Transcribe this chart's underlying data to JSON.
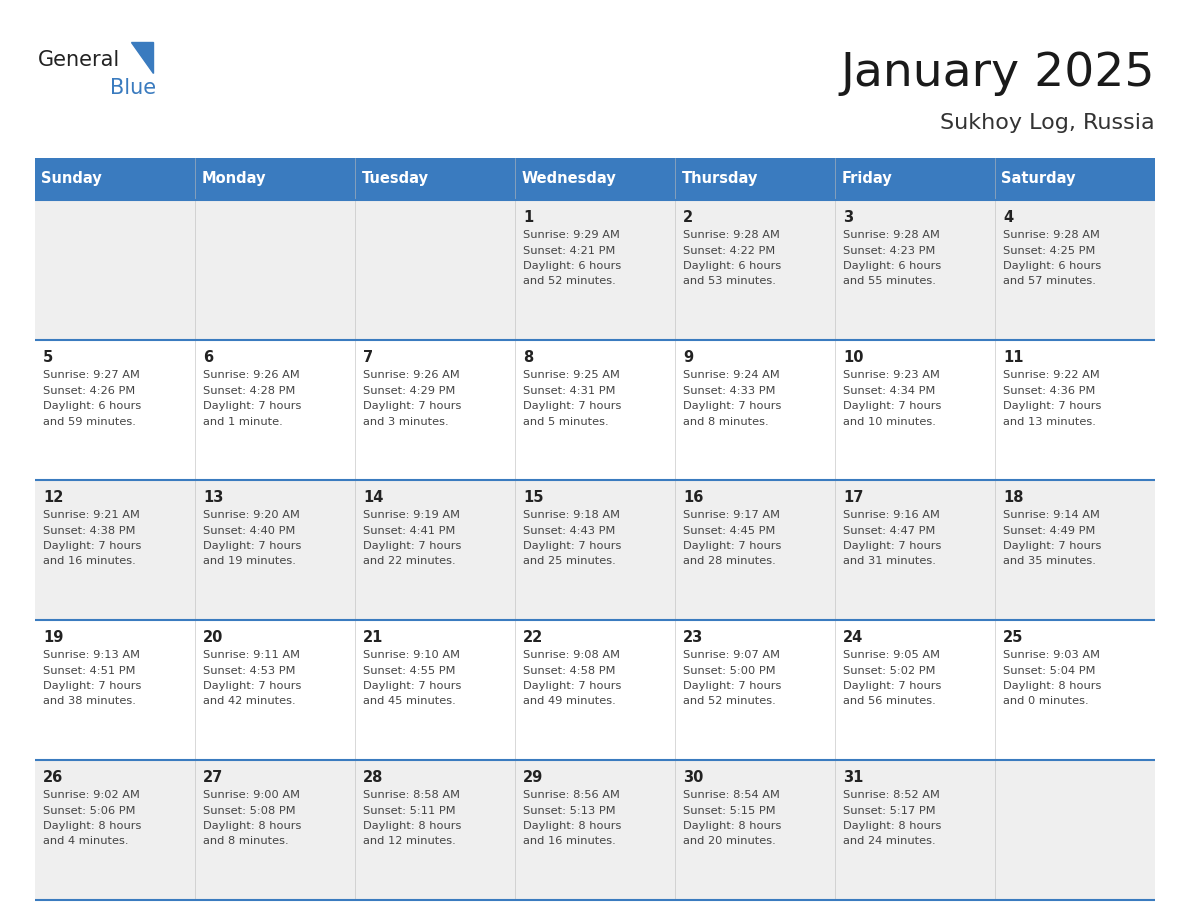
{
  "title": "January 2025",
  "subtitle": "Sukhoy Log, Russia",
  "header_color": "#3A7BBF",
  "header_text_color": "#FFFFFF",
  "day_names": [
    "Sunday",
    "Monday",
    "Tuesday",
    "Wednesday",
    "Thursday",
    "Friday",
    "Saturday"
  ],
  "background_color": "#FFFFFF",
  "cell_bg_odd": "#EFEFEF",
  "cell_bg_even": "#FFFFFF",
  "border_color": "#3A7BBF",
  "sep_color": "#3A7BBF",
  "date_color": "#222222",
  "text_color": "#444444",
  "logo_general_color": "#222222",
  "logo_blue_color": "#3A7BBF",
  "logo_triangle_color": "#3A7BBF",
  "weeks": [
    [
      {
        "date": "",
        "sunrise": "",
        "sunset": "",
        "daylight_line1": "",
        "daylight_line2": ""
      },
      {
        "date": "",
        "sunrise": "",
        "sunset": "",
        "daylight_line1": "",
        "daylight_line2": ""
      },
      {
        "date": "",
        "sunrise": "",
        "sunset": "",
        "daylight_line1": "",
        "daylight_line2": ""
      },
      {
        "date": "1",
        "sunrise": "Sunrise: 9:29 AM",
        "sunset": "Sunset: 4:21 PM",
        "daylight_line1": "Daylight: 6 hours",
        "daylight_line2": "and 52 minutes."
      },
      {
        "date": "2",
        "sunrise": "Sunrise: 9:28 AM",
        "sunset": "Sunset: 4:22 PM",
        "daylight_line1": "Daylight: 6 hours",
        "daylight_line2": "and 53 minutes."
      },
      {
        "date": "3",
        "sunrise": "Sunrise: 9:28 AM",
        "sunset": "Sunset: 4:23 PM",
        "daylight_line1": "Daylight: 6 hours",
        "daylight_line2": "and 55 minutes."
      },
      {
        "date": "4",
        "sunrise": "Sunrise: 9:28 AM",
        "sunset": "Sunset: 4:25 PM",
        "daylight_line1": "Daylight: 6 hours",
        "daylight_line2": "and 57 minutes."
      }
    ],
    [
      {
        "date": "5",
        "sunrise": "Sunrise: 9:27 AM",
        "sunset": "Sunset: 4:26 PM",
        "daylight_line1": "Daylight: 6 hours",
        "daylight_line2": "and 59 minutes."
      },
      {
        "date": "6",
        "sunrise": "Sunrise: 9:26 AM",
        "sunset": "Sunset: 4:28 PM",
        "daylight_line1": "Daylight: 7 hours",
        "daylight_line2": "and 1 minute."
      },
      {
        "date": "7",
        "sunrise": "Sunrise: 9:26 AM",
        "sunset": "Sunset: 4:29 PM",
        "daylight_line1": "Daylight: 7 hours",
        "daylight_line2": "and 3 minutes."
      },
      {
        "date": "8",
        "sunrise": "Sunrise: 9:25 AM",
        "sunset": "Sunset: 4:31 PM",
        "daylight_line1": "Daylight: 7 hours",
        "daylight_line2": "and 5 minutes."
      },
      {
        "date": "9",
        "sunrise": "Sunrise: 9:24 AM",
        "sunset": "Sunset: 4:33 PM",
        "daylight_line1": "Daylight: 7 hours",
        "daylight_line2": "and 8 minutes."
      },
      {
        "date": "10",
        "sunrise": "Sunrise: 9:23 AM",
        "sunset": "Sunset: 4:34 PM",
        "daylight_line1": "Daylight: 7 hours",
        "daylight_line2": "and 10 minutes."
      },
      {
        "date": "11",
        "sunrise": "Sunrise: 9:22 AM",
        "sunset": "Sunset: 4:36 PM",
        "daylight_line1": "Daylight: 7 hours",
        "daylight_line2": "and 13 minutes."
      }
    ],
    [
      {
        "date": "12",
        "sunrise": "Sunrise: 9:21 AM",
        "sunset": "Sunset: 4:38 PM",
        "daylight_line1": "Daylight: 7 hours",
        "daylight_line2": "and 16 minutes."
      },
      {
        "date": "13",
        "sunrise": "Sunrise: 9:20 AM",
        "sunset": "Sunset: 4:40 PM",
        "daylight_line1": "Daylight: 7 hours",
        "daylight_line2": "and 19 minutes."
      },
      {
        "date": "14",
        "sunrise": "Sunrise: 9:19 AM",
        "sunset": "Sunset: 4:41 PM",
        "daylight_line1": "Daylight: 7 hours",
        "daylight_line2": "and 22 minutes."
      },
      {
        "date": "15",
        "sunrise": "Sunrise: 9:18 AM",
        "sunset": "Sunset: 4:43 PM",
        "daylight_line1": "Daylight: 7 hours",
        "daylight_line2": "and 25 minutes."
      },
      {
        "date": "16",
        "sunrise": "Sunrise: 9:17 AM",
        "sunset": "Sunset: 4:45 PM",
        "daylight_line1": "Daylight: 7 hours",
        "daylight_line2": "and 28 minutes."
      },
      {
        "date": "17",
        "sunrise": "Sunrise: 9:16 AM",
        "sunset": "Sunset: 4:47 PM",
        "daylight_line1": "Daylight: 7 hours",
        "daylight_line2": "and 31 minutes."
      },
      {
        "date": "18",
        "sunrise": "Sunrise: 9:14 AM",
        "sunset": "Sunset: 4:49 PM",
        "daylight_line1": "Daylight: 7 hours",
        "daylight_line2": "and 35 minutes."
      }
    ],
    [
      {
        "date": "19",
        "sunrise": "Sunrise: 9:13 AM",
        "sunset": "Sunset: 4:51 PM",
        "daylight_line1": "Daylight: 7 hours",
        "daylight_line2": "and 38 minutes."
      },
      {
        "date": "20",
        "sunrise": "Sunrise: 9:11 AM",
        "sunset": "Sunset: 4:53 PM",
        "daylight_line1": "Daylight: 7 hours",
        "daylight_line2": "and 42 minutes."
      },
      {
        "date": "21",
        "sunrise": "Sunrise: 9:10 AM",
        "sunset": "Sunset: 4:55 PM",
        "daylight_line1": "Daylight: 7 hours",
        "daylight_line2": "and 45 minutes."
      },
      {
        "date": "22",
        "sunrise": "Sunrise: 9:08 AM",
        "sunset": "Sunset: 4:58 PM",
        "daylight_line1": "Daylight: 7 hours",
        "daylight_line2": "and 49 minutes."
      },
      {
        "date": "23",
        "sunrise": "Sunrise: 9:07 AM",
        "sunset": "Sunset: 5:00 PM",
        "daylight_line1": "Daylight: 7 hours",
        "daylight_line2": "and 52 minutes."
      },
      {
        "date": "24",
        "sunrise": "Sunrise: 9:05 AM",
        "sunset": "Sunset: 5:02 PM",
        "daylight_line1": "Daylight: 7 hours",
        "daylight_line2": "and 56 minutes."
      },
      {
        "date": "25",
        "sunrise": "Sunrise: 9:03 AM",
        "sunset": "Sunset: 5:04 PM",
        "daylight_line1": "Daylight: 8 hours",
        "daylight_line2": "and 0 minutes."
      }
    ],
    [
      {
        "date": "26",
        "sunrise": "Sunrise: 9:02 AM",
        "sunset": "Sunset: 5:06 PM",
        "daylight_line1": "Daylight: 8 hours",
        "daylight_line2": "and 4 minutes."
      },
      {
        "date": "27",
        "sunrise": "Sunrise: 9:00 AM",
        "sunset": "Sunset: 5:08 PM",
        "daylight_line1": "Daylight: 8 hours",
        "daylight_line2": "and 8 minutes."
      },
      {
        "date": "28",
        "sunrise": "Sunrise: 8:58 AM",
        "sunset": "Sunset: 5:11 PM",
        "daylight_line1": "Daylight: 8 hours",
        "daylight_line2": "and 12 minutes."
      },
      {
        "date": "29",
        "sunrise": "Sunrise: 8:56 AM",
        "sunset": "Sunset: 5:13 PM",
        "daylight_line1": "Daylight: 8 hours",
        "daylight_line2": "and 16 minutes."
      },
      {
        "date": "30",
        "sunrise": "Sunrise: 8:54 AM",
        "sunset": "Sunset: 5:15 PM",
        "daylight_line1": "Daylight: 8 hours",
        "daylight_line2": "and 20 minutes."
      },
      {
        "date": "31",
        "sunrise": "Sunrise: 8:52 AM",
        "sunset": "Sunset: 5:17 PM",
        "daylight_line1": "Daylight: 8 hours",
        "daylight_line2": "and 24 minutes."
      },
      {
        "date": "",
        "sunrise": "",
        "sunset": "",
        "daylight_line1": "",
        "daylight_line2": ""
      }
    ]
  ]
}
